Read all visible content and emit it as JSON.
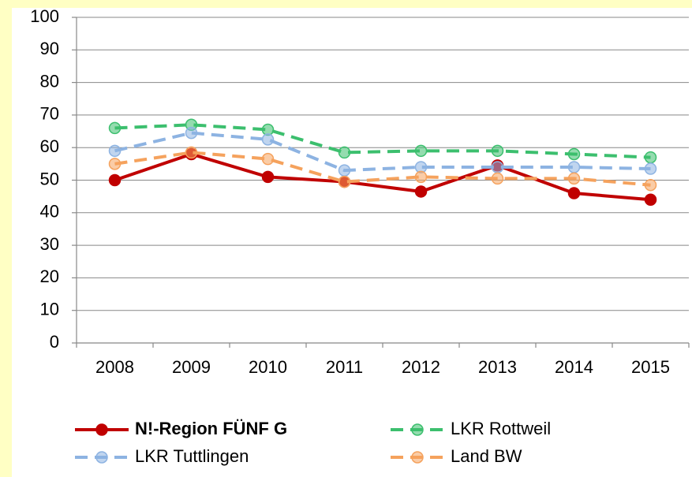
{
  "chart_data": {
    "type": "line",
    "categories": [
      "2008",
      "2009",
      "2010",
      "2011",
      "2012",
      "2013",
      "2014",
      "2015"
    ],
    "series": [
      {
        "name": "N!-Region FÜNF G",
        "color": "#c00000",
        "dashed": false,
        "values": [
          50,
          58,
          51,
          49.5,
          46.5,
          54.5,
          46,
          44
        ]
      },
      {
        "name": "LKR Rottweil",
        "color": "#3cbf6e",
        "dashed": true,
        "values": [
          66,
          67,
          65.5,
          58.5,
          59,
          59,
          58,
          57
        ]
      },
      {
        "name": "LKR Tuttlingen",
        "color": "#8db3e2",
        "dashed": true,
        "values": [
          59,
          64.5,
          62.5,
          53,
          54,
          54,
          54,
          53.5
        ]
      },
      {
        "name": "Land BW",
        "color": "#f5a25d",
        "dashed": true,
        "values": [
          55,
          58.5,
          56.5,
          49.5,
          51,
          50.5,
          50.5,
          48.5
        ]
      }
    ],
    "ylim": [
      0,
      100
    ],
    "yticks": [
      0,
      10,
      20,
      30,
      40,
      50,
      60,
      70,
      80,
      90,
      100
    ],
    "grid": true,
    "legend": "bottom"
  }
}
